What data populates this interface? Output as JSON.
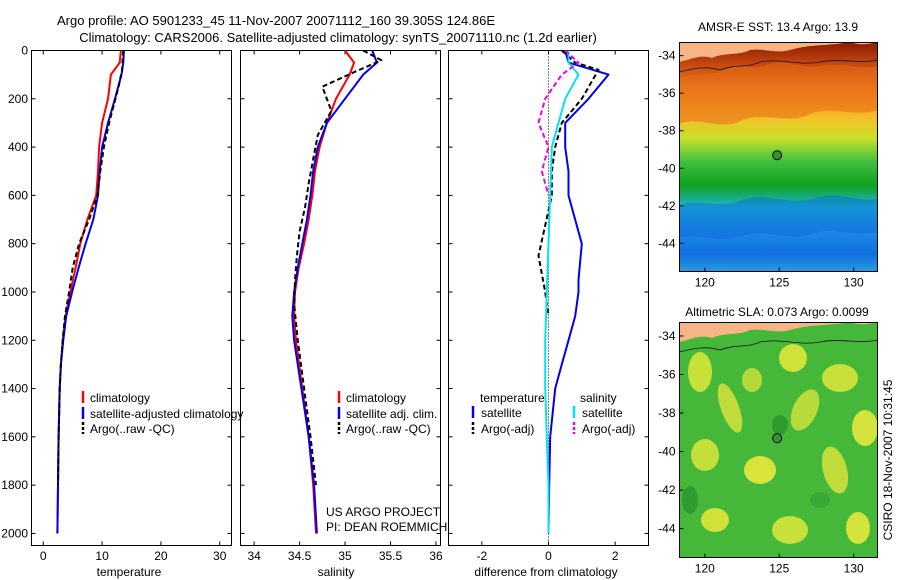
{
  "header": {
    "line1": "Argo profile: AO 5901233_45 11-Nov-2007 20071112_160 39.305S 124.86E",
    "line2": "Climatology: CARS2006. Satellite-adjusted climatology: synTS_20071110.nc (1.2d earlier)"
  },
  "side_label": "CSIRO 18-Nov-2007 10:31:45",
  "project": {
    "line1": "US ARGO PROJECT",
    "line2": "PI: DEAN ROEMMICH"
  },
  "colors": {
    "clim": "#ff0000",
    "sat": "#0000ee",
    "argo": "#000000",
    "sal_sat": "#00e5ee",
    "sal_argo": "#ee00ee"
  },
  "chart_data": [
    {
      "type": "line",
      "xlabel": "temperature",
      "xlim": [
        -2,
        32
      ],
      "xticks": [
        0,
        10,
        20,
        30
      ],
      "ylim": [
        2050,
        0
      ],
      "yticks": [
        0,
        200,
        400,
        600,
        800,
        1000,
        1200,
        1400,
        1600,
        1800,
        2000
      ],
      "legend": [
        "climatology",
        "satellite-adjusted climatology",
        "Argo(..raw -QC)"
      ],
      "series": [
        {
          "name": "climatology",
          "color": "#ff0000",
          "dashed": false,
          "x": [
            13.2,
            13.0,
            11.5,
            11.0,
            10.0,
            9.5,
            9.3,
            9.0,
            7.5,
            6.3,
            5.5,
            4.6,
            3.8,
            3.3,
            3.0,
            2.8,
            2.6,
            2.5,
            2.4
          ],
          "y": [
            0,
            50,
            100,
            200,
            300,
            400,
            500,
            600,
            700,
            800,
            900,
            1000,
            1100,
            1200,
            1300,
            1400,
            1600,
            1800,
            2000
          ]
        },
        {
          "name": "satellite-adjusted climatology",
          "color": "#0000ee",
          "dashed": false,
          "x": [
            13.7,
            13.6,
            13.3,
            12.2,
            11.0,
            10.0,
            9.6,
            9.3,
            8.5,
            7.2,
            6.0,
            4.9,
            3.9,
            3.4,
            3.0,
            2.8,
            2.6,
            2.5,
            2.4
          ],
          "y": [
            0,
            50,
            100,
            200,
            300,
            400,
            500,
            600,
            700,
            800,
            900,
            1000,
            1100,
            1200,
            1300,
            1400,
            1600,
            1800,
            2000
          ]
        },
        {
          "name": "Argo(..raw -QC)",
          "color": "#000000",
          "dashed": true,
          "x": [
            13.6,
            13.5,
            13.4,
            12.8,
            11.2,
            10.3,
            9.7,
            9.2,
            7.8,
            6.1,
            5.0,
            4.4,
            3.7,
            3.3,
            3.0,
            2.8,
            2.6,
            2.5
          ],
          "y": [
            0,
            30,
            80,
            150,
            300,
            400,
            500,
            600,
            700,
            800,
            900,
            1000,
            1100,
            1200,
            1300,
            1400,
            1600,
            1800
          ]
        }
      ]
    },
    {
      "type": "line",
      "xlabel": "salinity",
      "xlim": [
        33.85,
        36.05
      ],
      "xticks": [
        34,
        34.5,
        35,
        35.5,
        36
      ],
      "ylim": [
        2050,
        0
      ],
      "legend": [
        "climatology",
        "satellite adj. clim.",
        "Argo(..raw -QC)"
      ],
      "series": [
        {
          "name": "climatology",
          "color": "#ff0000",
          "dashed": false,
          "x": [
            35.0,
            35.1,
            35.05,
            34.9,
            34.8,
            34.72,
            34.67,
            34.64,
            34.6,
            34.55,
            34.49,
            34.45,
            34.44,
            34.46,
            34.53,
            34.6,
            34.65,
            34.68
          ],
          "y": [
            0,
            50,
            100,
            200,
            300,
            400,
            500,
            600,
            700,
            800,
            900,
            1000,
            1100,
            1200,
            1400,
            1600,
            1800,
            2000
          ]
        },
        {
          "name": "satellite adj. clim.",
          "color": "#0000ee",
          "dashed": false,
          "x": [
            35.3,
            35.35,
            35.2,
            35.0,
            34.8,
            34.7,
            34.65,
            34.62,
            34.58,
            34.53,
            34.48,
            34.44,
            34.42,
            34.44,
            34.52,
            34.6,
            34.66,
            34.69
          ],
          "y": [
            0,
            50,
            100,
            200,
            300,
            400,
            500,
            600,
            700,
            800,
            900,
            1000,
            1100,
            1200,
            1400,
            1600,
            1800,
            2000
          ]
        },
        {
          "name": "Argo(..raw -QC)",
          "color": "#000000",
          "dashed": true,
          "x": [
            35.2,
            35.4,
            35.1,
            34.75,
            34.85,
            34.7,
            34.65,
            34.6,
            34.56,
            34.5,
            34.47,
            34.45,
            34.44,
            34.48,
            34.55,
            34.62,
            34.68
          ],
          "y": [
            0,
            40,
            90,
            150,
            250,
            350,
            450,
            550,
            650,
            750,
            850,
            950,
            1050,
            1200,
            1400,
            1600,
            1800
          ]
        }
      ]
    },
    {
      "type": "line",
      "xlabel": "difference from climatology",
      "xlim": [
        -3,
        3
      ],
      "xticks": [
        -2,
        0,
        2
      ],
      "ylim": [
        2050,
        0
      ],
      "legend": [
        "temperature",
        "satellite",
        "Argo(-adj)",
        "salinity",
        "satellite",
        "Argo(-adj)"
      ],
      "series": [
        {
          "name": "temperature satellite",
          "color": "#0000ee",
          "dashed": false,
          "x": [
            0.5,
            0.6,
            1.8,
            1.2,
            0.5,
            0.5,
            0.6,
            0.6,
            1.0,
            0.9,
            0.9,
            0.8,
            0.6,
            0.4,
            0.2,
            0.05,
            0.02,
            0.0
          ],
          "y": [
            0,
            50,
            100,
            200,
            300,
            400,
            500,
            600,
            800,
            950,
            1000,
            1100,
            1200,
            1300,
            1400,
            1600,
            1800,
            2000
          ]
        },
        {
          "name": "temperature Argo(-adj)",
          "color": "#000000",
          "dashed": true,
          "x": [
            0.4,
            0.8,
            1.5,
            1.0,
            0.4,
            0.2,
            0.1,
            0.1,
            -0.3,
            -0.1,
            0.0
          ],
          "y": [
            0,
            50,
            80,
            200,
            300,
            400,
            500,
            600,
            850,
            1000,
            1100
          ]
        },
        {
          "name": "salinity satellite",
          "color": "#00e5ee",
          "dashed": false,
          "x": [
            0.6,
            0.6,
            0.9,
            0.5,
            0.3,
            0.1,
            0.05,
            0.0,
            -0.05,
            -0.1,
            -0.1,
            -0.05,
            0.0,
            0.0
          ],
          "y": [
            0,
            50,
            100,
            200,
            300,
            400,
            600,
            800,
            1000,
            1200,
            1400,
            1600,
            1800,
            2000
          ]
        },
        {
          "name": "salinity Argo(-adj)",
          "color": "#ee00ee",
          "dashed": true,
          "x": [
            0.5,
            0.9,
            0.4,
            -0.1,
            -0.3,
            0.0,
            -0.2,
            0.0
          ],
          "y": [
            0,
            50,
            100,
            200,
            300,
            400,
            500,
            600
          ]
        }
      ]
    },
    {
      "type": "heatmap",
      "title": "AMSR-E SST: 13.4 Argo: 13.9",
      "xticks": [
        120,
        125,
        130
      ],
      "yticks": [
        -34,
        -36,
        -38,
        -40,
        -42,
        -44
      ],
      "xlim": [
        118.3,
        131.6
      ],
      "ylim": [
        -45.5,
        -33.3
      ],
      "marker": {
        "lon": 124.86,
        "lat": -39.305
      }
    },
    {
      "type": "heatmap",
      "title": "Altimetric SLA: 0.073 Argo: 0.0099",
      "xticks": [
        120,
        125,
        130
      ],
      "yticks": [
        -34,
        -36,
        -38,
        -40,
        -42,
        -44
      ],
      "xlim": [
        118.3,
        131.6
      ],
      "ylim": [
        -45.5,
        -33.3
      ],
      "marker": {
        "lon": 124.86,
        "lat": -39.305
      }
    }
  ]
}
